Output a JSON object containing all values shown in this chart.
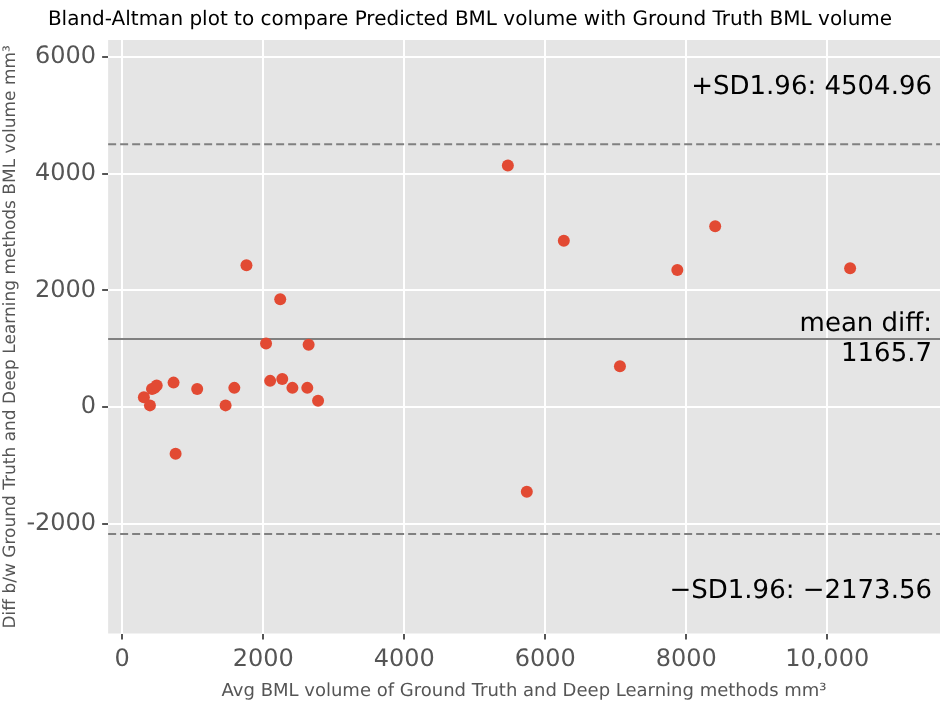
{
  "chart_data": {
    "type": "scatter",
    "title": "Bland-Altman plot to compare Predicted BML volume with Ground Truth BML volume",
    "xlabel": "Avg BML volume of Ground Truth and Deep Learning methods mm³",
    "ylabel": "Diff b/w Ground Truth and Deep Learning methods BML volume mm³",
    "series": [
      {
        "color": "#e24a33",
        "x": [
          307,
          393,
          422,
          460,
          489,
          728,
          757,
          1063,
          1466,
          1590,
          1762,
          2040,
          2098,
          2241,
          2270,
          2414,
          2625,
          2644,
          2778,
          5470,
          6264,
          5739,
          7060,
          7874,
          8411,
          10325
        ],
        "values": [
          170,
          30,
          310,
          330,
          370,
          420,
          -800,
          310,
          30,
          330,
          2430,
          1090,
          450,
          1850,
          480,
          330,
          330,
          1070,
          110,
          4140,
          2850,
          -1450,
          700,
          2350,
          3100,
          2380
        ]
      }
    ],
    "xlim": [
      -200,
      11600
    ],
    "ylim": [
      -3880,
      6290
    ],
    "xticks": [
      0,
      2000,
      4000,
      6000,
      8000,
      {
        "value": 10000,
        "label": "10,000"
      }
    ],
    "yticks": [
      -2000,
      0,
      2000,
      4000,
      6000
    ],
    "ref_lines": [
      {
        "axis": "y",
        "value": 4504.96,
        "label": "+SD1.96: 4504.96",
        "color": "#808080",
        "line_style": "dashed"
      },
      {
        "axis": "y",
        "value": 1165.7,
        "label": "mean diff:\n1165.7",
        "color": "#808080",
        "line_style": "solid"
      },
      {
        "axis": "y",
        "value": -2173.56,
        "label": "−SD1.96: −2173.56",
        "color": "#808080",
        "line_style": "dashed"
      }
    ],
    "grid": true,
    "marker": "circle",
    "legend": false
  }
}
